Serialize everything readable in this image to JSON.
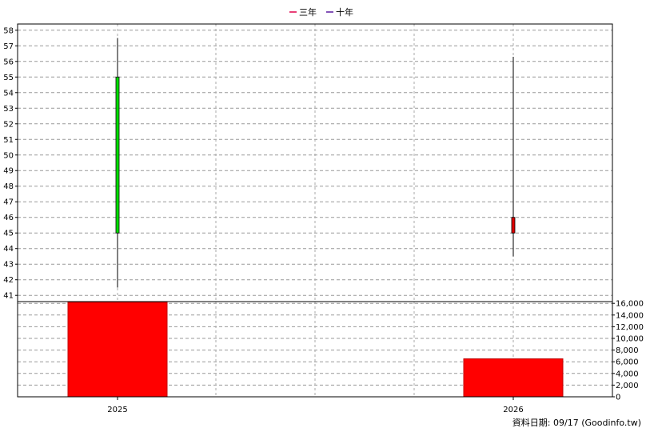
{
  "legend": [
    {
      "label": "三年",
      "color": "#e0004a"
    },
    {
      "label": "十年",
      "color": "#5a1aa0"
    }
  ],
  "footer": {
    "text": "資料日期: 09/17  (Goodinfo.tw)"
  },
  "chart_data": [
    {
      "type": "candlestick",
      "categories": [
        "2025",
        "2026"
      ],
      "ylim": [
        40.6,
        58.4
      ],
      "y_ticks": [
        41,
        42,
        43,
        44,
        45,
        46,
        47,
        48,
        49,
        50,
        51,
        52,
        53,
        54,
        55,
        56,
        57,
        58
      ],
      "grid": true,
      "candles": [
        {
          "x": "2025",
          "open": 45,
          "close": 55,
          "high": 57.5,
          "low": 41.5,
          "color": "#00e000"
        },
        {
          "x": "2026",
          "open": 46,
          "close": 45,
          "high": 56.3,
          "low": 43.5,
          "color": "#e00000"
        }
      ]
    },
    {
      "type": "bar",
      "categories": [
        "2025",
        "2026"
      ],
      "values": [
        16200,
        6500
      ],
      "ylim": [
        0,
        16300
      ],
      "y_ticks": [
        0,
        2000,
        4000,
        6000,
        8000,
        10000,
        12000,
        14000,
        16000
      ],
      "y_tick_labels": [
        "0",
        "2,000",
        "4,000",
        "6,000",
        "8,000",
        "10,000",
        "12,000",
        "14,000",
        "16,000"
      ],
      "color": "#ff0000",
      "grid": true
    }
  ]
}
